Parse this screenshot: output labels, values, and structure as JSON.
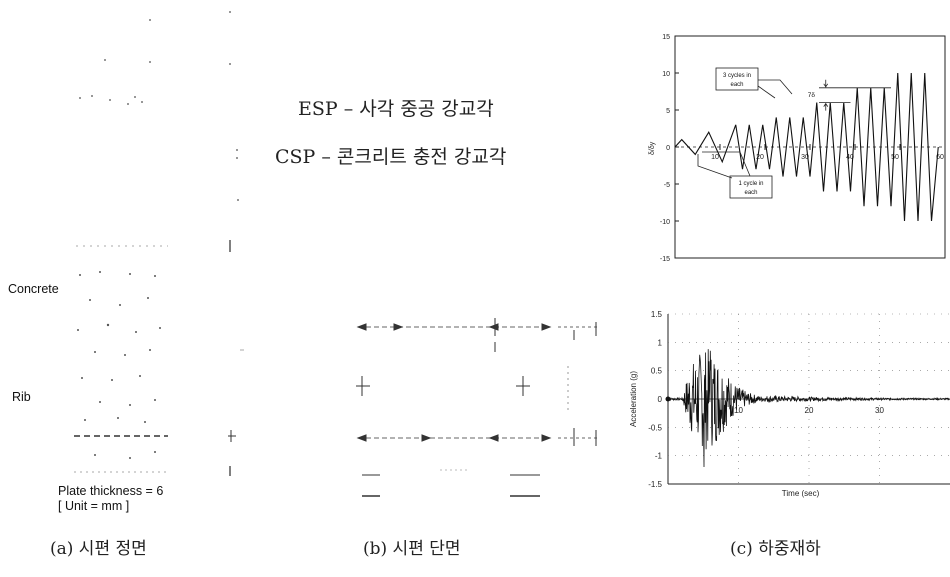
{
  "legend": {
    "esp": "ESP – 사각 중공 강교각",
    "csp": "CSP – 콘크리트 충전 강교각"
  },
  "specimen": {
    "concrete_label": "Concrete",
    "rib_label": "Rib",
    "plate_thickness": "Plate thickness = 6",
    "unit": "[ Unit = mm ]"
  },
  "captions": {
    "a": "(a) 시편 정면",
    "b": "(b) 시편 단면",
    "c": "(c) 하중재하"
  },
  "chart_data": [
    {
      "type": "line",
      "name_id": "cyclic-loading",
      "ylabel": "δ/δy",
      "ylim": [
        -15,
        15
      ],
      "xlim": [
        0,
        60
      ],
      "yticks": [
        15,
        10,
        5,
        0,
        -5,
        -10,
        -15
      ],
      "xticks": [
        10,
        20,
        30,
        40,
        50,
        60
      ],
      "annotations": [
        "3 cycles in each",
        "1 cycle in each",
        "7δ"
      ],
      "peaks": [
        {
          "x": 1.5,
          "y": 1
        },
        {
          "x": 4.5,
          "y": -1
        },
        {
          "x": 7.5,
          "y": 2
        },
        {
          "x": 10.5,
          "y": -2
        },
        {
          "x": 13.5,
          "y": 3
        },
        {
          "x": 15,
          "y": -3
        },
        {
          "x": 16.5,
          "y": 3
        },
        {
          "x": 18,
          "y": -3
        },
        {
          "x": 19.5,
          "y": 3
        },
        {
          "x": 21,
          "y": -3
        },
        {
          "x": 22.5,
          "y": 4
        },
        {
          "x": 24,
          "y": -4
        },
        {
          "x": 25.5,
          "y": 4
        },
        {
          "x": 27,
          "y": -4
        },
        {
          "x": 28.5,
          "y": 4
        },
        {
          "x": 30,
          "y": -4
        },
        {
          "x": 31.5,
          "y": 6
        },
        {
          "x": 33,
          "y": -6
        },
        {
          "x": 34.5,
          "y": 6
        },
        {
          "x": 36,
          "y": -6
        },
        {
          "x": 37.5,
          "y": 6
        },
        {
          "x": 39,
          "y": -6
        },
        {
          "x": 40.5,
          "y": 8
        },
        {
          "x": 42,
          "y": -8
        },
        {
          "x": 43.5,
          "y": 8
        },
        {
          "x": 45,
          "y": -8
        },
        {
          "x": 46.5,
          "y": 8
        },
        {
          "x": 48,
          "y": -8
        },
        {
          "x": 49.5,
          "y": 10
        },
        {
          "x": 51,
          "y": -10
        },
        {
          "x": 52.5,
          "y": 10
        },
        {
          "x": 54,
          "y": -10
        },
        {
          "x": 55.5,
          "y": 10
        },
        {
          "x": 57,
          "y": -10
        }
      ],
      "grid": false
    },
    {
      "type": "line",
      "name_id": "ground-acceleration",
      "xlabel": "Time (sec)",
      "ylabel": "Acceleration (g)",
      "ylim": [
        -1.5,
        1.5
      ],
      "xlim": [
        0,
        40
      ],
      "yticks": [
        1.5,
        1,
        0.5,
        0,
        -0.5,
        -1,
        -1.5
      ],
      "xticks": [
        10,
        20,
        30
      ],
      "peak_acceleration_positive": 0.85,
      "peak_acceleration_negative": -1.2,
      "strong_motion_window": [
        2,
        12
      ],
      "grid": true
    }
  ]
}
